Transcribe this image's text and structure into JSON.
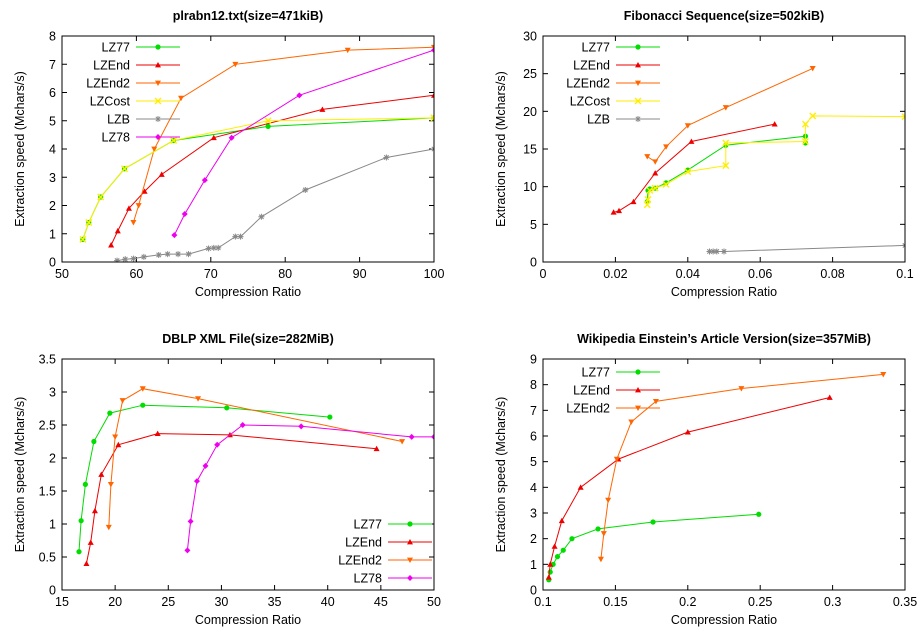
{
  "chart_data": [
    {
      "type": "line",
      "title": "plrabn12.txt(size=471kiB)",
      "xlabel": "Compression Ratio",
      "ylabel": "Extraction speed (Mchars/s)",
      "xlim": [
        50,
        100
      ],
      "ylim": [
        0,
        8
      ],
      "xticks": [
        50,
        60,
        70,
        80,
        90,
        100
      ],
      "yticks": [
        0,
        1,
        2,
        3,
        4,
        5,
        6,
        7,
        8
      ],
      "xtick_labels": [
        "50",
        "60",
        "70",
        "80",
        "90",
        "100"
      ],
      "ytick_labels": [
        "0",
        "1",
        "2",
        "3",
        "4",
        "5",
        "6",
        "7",
        "8"
      ],
      "legend_position": "top-left",
      "series": [
        {
          "name": "LZ77",
          "color": "#00dd00",
          "marker": "circle",
          "x": [
            52.8,
            53.6,
            55.2,
            58.4,
            65.0,
            77.7,
            100
          ],
          "y": [
            0.8,
            1.4,
            2.3,
            3.3,
            4.3,
            4.8,
            5.1
          ]
        },
        {
          "name": "LZEnd",
          "color": "#ee0000",
          "marker": "triangle",
          "x": [
            56.6,
            57.5,
            59.0,
            61.1,
            63.4,
            70.4,
            85.0,
            100
          ],
          "y": [
            0.6,
            1.1,
            1.9,
            2.5,
            3.1,
            4.4,
            5.4,
            5.9
          ]
        },
        {
          "name": "LZEnd2",
          "color": "#ff6600",
          "marker": "triangle-down",
          "x": [
            59.6,
            60.3,
            62.4,
            66.0,
            73.3,
            88.4,
            100
          ],
          "y": [
            1.4,
            2.0,
            4.0,
            5.8,
            7.0,
            7.5,
            7.6
          ]
        },
        {
          "name": "LZCost",
          "color": "#ffee00",
          "marker": "x",
          "x": [
            52.8,
            53.6,
            55.2,
            58.4,
            65.0,
            77.7,
            100
          ],
          "y": [
            0.8,
            1.4,
            2.3,
            3.3,
            4.3,
            5.0,
            5.1
          ]
        },
        {
          "name": "LZB",
          "color": "#888888",
          "marker": "asterisk",
          "x": [
            57.4,
            58.5,
            59.6,
            61.0,
            63.0,
            64.2,
            65.6,
            67.0,
            69.7,
            70.4,
            71.0,
            73.3,
            74.0,
            76.8,
            82.7,
            93.6,
            100
          ],
          "y": [
            0.05,
            0.1,
            0.12,
            0.18,
            0.25,
            0.28,
            0.28,
            0.28,
            0.48,
            0.5,
            0.5,
            0.9,
            0.9,
            1.6,
            2.55,
            3.7,
            4.0
          ]
        },
        {
          "name": "LZ78",
          "color": "#ee00ee",
          "marker": "diamond",
          "x": [
            65.1,
            66.5,
            69.2,
            72.8,
            81.9,
            100
          ],
          "y": [
            0.95,
            1.7,
            2.9,
            4.4,
            5.9,
            7.5
          ]
        }
      ]
    },
    {
      "type": "line",
      "title": "Fibonacci Sequence(size=502kiB)",
      "xlabel": "Compression Ratio",
      "ylabel": "Extraction speed (Mchars/s)",
      "xlim": [
        0,
        0.1
      ],
      "ylim": [
        0,
        30
      ],
      "xticks": [
        0,
        0.02,
        0.04,
        0.06,
        0.08,
        0.1
      ],
      "yticks": [
        0,
        5,
        10,
        15,
        20,
        25,
        30
      ],
      "xtick_labels": [
        "0",
        "0.02",
        "0.04",
        "0.06",
        "0.08",
        "0.1"
      ],
      "ytick_labels": [
        "0",
        "5",
        "10",
        "15",
        "20",
        "25",
        "30"
      ],
      "legend_position": "top-left",
      "series": [
        {
          "name": "LZ77",
          "color": "#00dd00",
          "marker": "circle",
          "x": [
            0.0288,
            0.029,
            0.0295,
            0.031,
            0.034,
            0.04,
            0.0505,
            0.0725,
            0.0725
          ],
          "y": [
            8.0,
            9.5,
            9.7,
            9.8,
            10.5,
            12.2,
            15.5,
            16.7,
            15.8
          ]
        },
        {
          "name": "LZEnd",
          "color": "#ee0000",
          "marker": "triangle",
          "x": [
            0.0195,
            0.021,
            0.025,
            0.031,
            0.041,
            0.064
          ],
          "y": [
            6.6,
            6.8,
            8.0,
            11.8,
            16.0,
            18.3
          ]
        },
        {
          "name": "LZEnd2",
          "color": "#ff6600",
          "marker": "triangle-down",
          "x": [
            0.0288,
            0.031,
            0.034,
            0.04,
            0.0505,
            0.0745
          ],
          "y": [
            14.0,
            13.3,
            15.3,
            18.1,
            20.5,
            25.7
          ]
        },
        {
          "name": "LZCost",
          "color": "#ffee00",
          "marker": "x",
          "x": [
            0.0288,
            0.029,
            0.0295,
            0.031,
            0.034,
            0.04,
            0.0505,
            0.0505,
            0.0725,
            0.0725,
            0.0745,
            0.1
          ],
          "y": [
            7.6,
            8.3,
            9.5,
            9.8,
            10.3,
            12.0,
            12.8,
            15.8,
            16.0,
            18.3,
            19.4,
            19.3
          ]
        },
        {
          "name": "LZB",
          "color": "#888888",
          "marker": "asterisk",
          "x": [
            0.046,
            0.047,
            0.048,
            0.05,
            0.1
          ],
          "y": [
            1.4,
            1.4,
            1.4,
            1.4,
            2.2
          ]
        }
      ]
    },
    {
      "type": "line",
      "title": "DBLP XML File(size=282MiB)",
      "xlabel": "Compression Ratio",
      "ylabel": "Extraction speed (Mchars/s)",
      "xlim": [
        15,
        50
      ],
      "ylim": [
        0,
        3.5
      ],
      "xticks": [
        15,
        20,
        25,
        30,
        35,
        40,
        45,
        50
      ],
      "yticks": [
        0,
        0.5,
        1,
        1.5,
        2,
        2.5,
        3,
        3.5
      ],
      "xtick_labels": [
        "15",
        "20",
        "25",
        "30",
        "35",
        "40",
        "45",
        "50"
      ],
      "ytick_labels": [
        "0",
        "0.5",
        "1",
        "1.5",
        "2",
        "2.5",
        "3",
        "3.5"
      ],
      "legend_position": "bottom-right",
      "series": [
        {
          "name": "LZ77",
          "color": "#00dd00",
          "marker": "circle",
          "x": [
            16.6,
            16.8,
            17.2,
            18.0,
            19.5,
            22.6,
            30.5,
            40.2
          ],
          "y": [
            0.58,
            1.05,
            1.6,
            2.25,
            2.68,
            2.8,
            2.76,
            2.62
          ]
        },
        {
          "name": "LZEnd",
          "color": "#ee0000",
          "marker": "triangle",
          "x": [
            17.3,
            17.7,
            18.1,
            18.7,
            20.3,
            24.0,
            30.8,
            44.6
          ],
          "y": [
            0.4,
            0.72,
            1.2,
            1.75,
            2.2,
            2.37,
            2.35,
            2.14
          ]
        },
        {
          "name": "LZEnd2",
          "color": "#ff6600",
          "marker": "triangle-down",
          "x": [
            19.4,
            19.6,
            20.0,
            20.7,
            22.6,
            27.8,
            47.0
          ],
          "y": [
            0.95,
            1.6,
            2.32,
            2.87,
            3.05,
            2.9,
            2.25
          ]
        },
        {
          "name": "LZ78",
          "color": "#ee00ee",
          "marker": "diamond",
          "x": [
            26.8,
            27.1,
            27.7,
            28.5,
            29.6,
            32.0,
            37.5,
            47.9,
            50
          ],
          "y": [
            0.6,
            1.04,
            1.65,
            1.88,
            2.2,
            2.5,
            2.48,
            2.32,
            2.32
          ]
        }
      ]
    },
    {
      "type": "line",
      "title": "Wikipedia Einstein’s Article Version(size=357MiB)",
      "xlabel": "Compression Ratio",
      "ylabel": "Extraction speed (Mchars/s)",
      "xlim": [
        0.1,
        0.35
      ],
      "ylim": [
        0,
        9
      ],
      "xticks": [
        0.1,
        0.15,
        0.2,
        0.25,
        0.3,
        0.35
      ],
      "yticks": [
        0,
        1,
        2,
        3,
        4,
        5,
        6,
        7,
        8,
        9
      ],
      "xtick_labels": [
        "0.1",
        "0.15",
        "0.2",
        "0.25",
        "0.3",
        "0.35"
      ],
      "ytick_labels": [
        "0",
        "1",
        "2",
        "3",
        "4",
        "5",
        "6",
        "7",
        "8",
        "9"
      ],
      "legend_position": "top-left",
      "series": [
        {
          "name": "LZ77",
          "color": "#00dd00",
          "marker": "circle",
          "x": [
            0.104,
            0.105,
            0.107,
            0.11,
            0.114,
            0.12,
            0.138,
            0.176,
            0.249
          ],
          "y": [
            0.4,
            0.7,
            1.0,
            1.3,
            1.55,
            2.0,
            2.38,
            2.65,
            2.95
          ]
        },
        {
          "name": "LZEnd",
          "color": "#ee0000",
          "marker": "triangle",
          "x": [
            0.104,
            0.105,
            0.108,
            0.113,
            0.126,
            0.152,
            0.2,
            0.298
          ],
          "y": [
            0.5,
            1.0,
            1.7,
            2.7,
            4.0,
            5.1,
            6.15,
            7.5
          ]
        },
        {
          "name": "LZEnd2",
          "color": "#ff6600",
          "marker": "triangle-down",
          "x": [
            0.14,
            0.142,
            0.145,
            0.151,
            0.161,
            0.178,
            0.237,
            0.335
          ],
          "y": [
            1.2,
            2.2,
            3.5,
            5.1,
            6.55,
            7.35,
            7.85,
            8.4
          ]
        }
      ]
    }
  ]
}
